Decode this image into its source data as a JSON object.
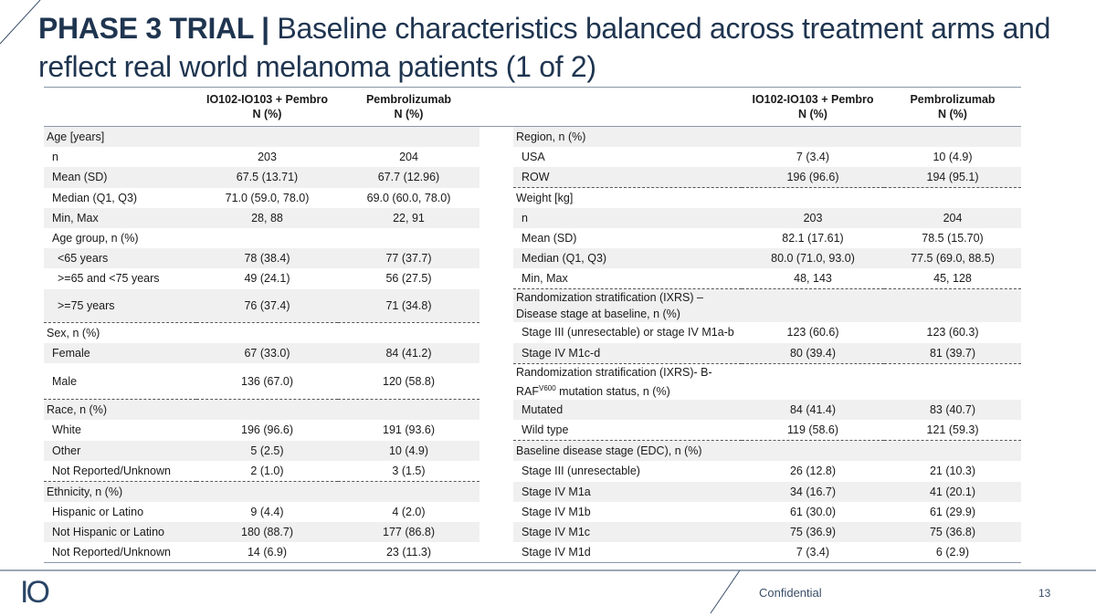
{
  "header": {
    "bold": "PHASE 3 TRIAL |",
    "rest": "Baseline characteristics balanced across treatment arms and reflect real world melanoma patients (1 of 2)"
  },
  "tables": [
    {
      "columns": [
        [
          "IO102-IO103 + Pembro",
          "N (%)"
        ],
        [
          "Pembrolizumab",
          "N (%)"
        ]
      ],
      "sections": [
        {
          "heading": "Age [years]",
          "rows": [
            [
              "n",
              "203",
              "204"
            ],
            [
              "Mean (SD)",
              "67.5 (13.71)",
              "67.7 (12.96)"
            ],
            [
              "Median (Q1, Q3)",
              "71.0 (59.0, 78.0)",
              "69.0 (60.0, 78.0)"
            ],
            [
              "Min, Max",
              "28, 88",
              "22, 91"
            ],
            {
              "label": "Age group, n (%)",
              "rows": [
                [
                  "<65 years",
                  "78 (38.4)",
                  "77 (37.7)"
                ],
                [
                  ">=65 and <75 years",
                  "49 (24.1)",
                  "56 (27.5)"
                ],
                [
                  ">=75 years",
                  "76 (37.4)",
                  "71 (34.8)"
                ]
              ]
            }
          ]
        },
        {
          "heading": "Sex, n (%)",
          "rows": [
            [
              "Female",
              "67 (33.0)",
              "84 (41.2)"
            ],
            [
              "Male",
              "136 (67.0)",
              "120 (58.8)"
            ]
          ]
        },
        {
          "heading": "Race, n (%)",
          "rows": [
            [
              "White",
              "196 (96.6)",
              "191 (93.6)"
            ],
            [
              "Other",
              "5 (2.5)",
              "10 (4.9)"
            ],
            [
              "Not Reported/Unknown",
              "2 (1.0)",
              "3 (1.5)"
            ]
          ]
        },
        {
          "heading": "Ethnicity, n (%)",
          "rows": [
            [
              "Hispanic or Latino",
              "9 (4.4)",
              "4 (2.0)"
            ],
            [
              "Not Hispanic or Latino",
              "180 (88.7)",
              "177 (86.8)"
            ],
            [
              "Not Reported/Unknown",
              "14 (6.9)",
              "23 (11.3)"
            ]
          ]
        }
      ]
    },
    {
      "columns": [
        [
          "IO102-IO103 + Pembro",
          "N (%)"
        ],
        [
          "Pembrolizumab",
          "N (%)"
        ]
      ],
      "sections": [
        {
          "heading": "Region, n (%)",
          "rows": [
            [
              "USA",
              "7 (3.4)",
              "10 (4.9)"
            ],
            [
              "ROW",
              "196 (96.6)",
              "194 (95.1)"
            ]
          ]
        },
        {
          "heading": "Weight [kg]",
          "rows": [
            [
              "n",
              "203",
              "204"
            ],
            [
              "Mean (SD)",
              "82.1 (17.61)",
              "78.5 (15.70)"
            ],
            [
              "Median (Q1, Q3)",
              "80.0 (71.0, 93.0)",
              "77.5 (69.0, 88.5)"
            ],
            [
              "Min, Max",
              "48, 143",
              "45, 128"
            ]
          ]
        },
        {
          "heading": "Randomization stratification (IXRS) – Disease stage at baseline, n (%)",
          "rows": [
            [
              "Stage III (unresectable) or stage IV M1a-b",
              "123 (60.6)",
              "123 (60.3)"
            ],
            [
              "Stage IV M1c-d",
              "80 (39.4)",
              "81 (39.7)"
            ]
          ]
        },
        {
          "heading": {
            "text": "Randomization stratification (IXRS)- B-RAF",
            "sup": "V600",
            "after": " mutation status, n (%)"
          },
          "rows": [
            [
              "Mutated",
              "84 (41.4)",
              "83 (40.7)"
            ],
            [
              "Wild type",
              "119 (58.6)",
              "121 (59.3)"
            ]
          ]
        },
        {
          "heading": "Baseline disease stage (EDC), n (%)",
          "rows": [
            [
              "Stage III (unresectable)",
              "26 (12.8)",
              "21 (10.3)"
            ],
            [
              "Stage IV M1a",
              "34 (16.7)",
              "41 (20.1)"
            ],
            [
              "Stage IV M1b",
              "61 (30.0)",
              "61 (29.9)"
            ],
            [
              "Stage IV M1c",
              "75 (36.9)",
              "75 (36.8)"
            ],
            [
              "Stage IV M1d",
              "7 (3.4)",
              "6 (2.9)"
            ]
          ]
        }
      ]
    }
  ],
  "footer": {
    "logo": "IO",
    "confidential": "Confidential",
    "page": "13"
  }
}
